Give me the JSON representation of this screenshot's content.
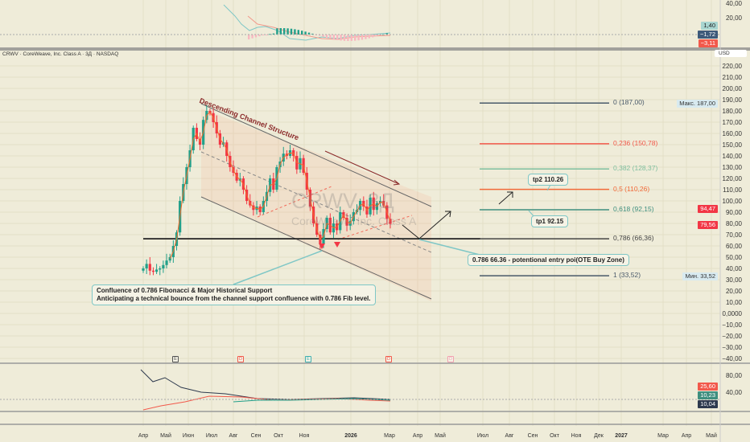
{
  "header": {
    "symbol_line": "CRWV · CoreWeave, Inc. Class A · 3Д · NASDAQ",
    "currency": "USD"
  },
  "watermark": {
    "symbol": "CRWV, 3Д",
    "name": "CoreWeave, Inc. Class A"
  },
  "macd_panel": {
    "axis": [
      "40,00",
      "20,00"
    ],
    "tags": [
      {
        "value": "1,40",
        "color": "#a8d5d0"
      },
      {
        "value": "−1,72",
        "color": "#3e5a7a"
      },
      {
        "value": "−3,11",
        "color": "#f2594b"
      }
    ]
  },
  "price_axis": [
    "220,00",
    "210,00",
    "200,00",
    "190,00",
    "180,00",
    "170,00",
    "160,00",
    "150,00",
    "140,00",
    "130,00",
    "120,00",
    "110,00",
    "100,00",
    "90,00",
    "80,00",
    "70,00",
    "60,00",
    "50,00",
    "40,00",
    "30,00",
    "20,00",
    "10,00",
    "0,0000",
    "−10,00",
    "−20,00",
    "−30,00",
    "−40,00"
  ],
  "price_tags": {
    "max_label": "Макс.",
    "max_value": "187,00",
    "min_label": "Мин.",
    "min_value": "33,52",
    "current": "94,47",
    "close": "79,56"
  },
  "fib_levels": [
    {
      "label": "0 (187,00)",
      "price": 187,
      "color": "#4a5a6a"
    },
    {
      "label": "0,236 (150,78)",
      "price": 150.78,
      "color": "#f2594b"
    },
    {
      "label": "0,382 (128,37)",
      "price": 128.37,
      "color": "#7fbf9f"
    },
    {
      "label": "0,5 (110,26)",
      "price": 110.26,
      "color": "#f26a3a"
    },
    {
      "label": "0,618 (92,15)",
      "price": 92.15,
      "color": "#3f8f7f"
    },
    {
      "label": "0,786 (66,36)",
      "price": 66.36,
      "color": "#444"
    },
    {
      "label": "1 (33,52)",
      "price": 33.52,
      "color": "#4a5a6a"
    }
  ],
  "annotations": {
    "channel_title": "Descending Channel Structure",
    "tp2": "tp2 110.26",
    "tp1": "tp1 92.15",
    "entry": "0.786 66.36 - potentional entry poi(OTE Buy Zone)",
    "confluence_line1": "Confluence of 0.786 Fibonacci & Major Historical Support",
    "confluence_line2": "Anticipating a technical bounce from the channel support confluence with 0.786 Fib level."
  },
  "event_markers": [
    "E",
    "D",
    "E",
    "D",
    "D"
  ],
  "lower_panel": {
    "axis": [
      "80,00",
      "40,00"
    ],
    "tags": [
      {
        "value": "25,60",
        "color": "#f2594b"
      },
      {
        "value": "10,23",
        "color": "#3f8f7f"
      },
      {
        "value": "10,04",
        "color": "#2e3a4e"
      }
    ]
  },
  "time_axis": [
    {
      "t": "Апр",
      "x": 178
    },
    {
      "t": "Май",
      "x": 206
    },
    {
      "t": "Июн",
      "x": 234
    },
    {
      "t": "Июл",
      "x": 263
    },
    {
      "t": "Авг",
      "x": 290
    },
    {
      "t": "Сен",
      "x": 318
    },
    {
      "t": "Окт",
      "x": 346
    },
    {
      "t": "Ноя",
      "x": 378
    },
    {
      "t": "2026",
      "x": 436,
      "bold": true
    },
    {
      "t": "Мар",
      "x": 484
    },
    {
      "t": "Апр",
      "x": 519
    },
    {
      "t": "Май",
      "x": 547
    },
    {
      "t": "Июл",
      "x": 600
    },
    {
      "t": "Авг",
      "x": 633
    },
    {
      "t": "Сен",
      "x": 662
    },
    {
      "t": "Окт",
      "x": 689
    },
    {
      "t": "Ноя",
      "x": 716
    },
    {
      "t": "Дек",
      "x": 744
    },
    {
      "t": "2027",
      "x": 772,
      "bold": true
    },
    {
      "t": "Мар",
      "x": 824
    },
    {
      "t": "Апр",
      "x": 853
    },
    {
      "t": "Май",
      "x": 884
    }
  ],
  "chart_data": {
    "type": "candlestick",
    "closes": [
      40,
      44,
      38,
      37,
      39,
      40,
      43,
      47,
      50,
      60,
      72,
      100,
      115,
      130,
      145,
      165,
      155,
      150,
      172,
      180,
      178,
      170,
      160,
      150,
      152,
      140,
      130,
      125,
      118,
      120,
      110,
      100,
      96,
      92,
      95,
      90,
      100,
      108,
      120,
      110,
      130,
      135,
      142,
      140,
      145,
      140,
      128,
      138,
      125,
      110,
      95,
      80,
      70,
      62,
      75,
      85,
      72,
      80,
      74,
      90,
      85,
      78,
      82,
      90,
      92,
      100,
      95,
      88,
      103,
      92,
      98,
      100,
      96,
      84,
      79.56
    ],
    "ylim": [
      -40,
      225
    ]
  }
}
